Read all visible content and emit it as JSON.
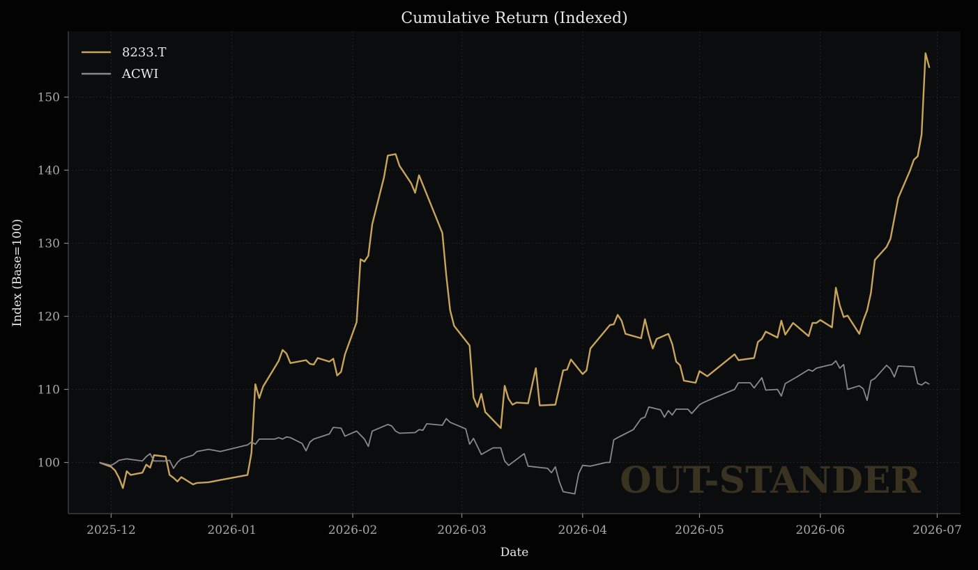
{
  "chart_data": {
    "type": "line",
    "title": "Cumulative Return (Indexed)",
    "xlabel": "Date",
    "ylabel": "Index (Base=100)",
    "watermark": "OUT-STANDER",
    "xlim": [
      "2025-11-20",
      "2026-07-07"
    ],
    "ylim": [
      93.0,
      159.0
    ],
    "yticks": [
      100,
      110,
      120,
      130,
      140,
      150
    ],
    "xticks": [
      {
        "date": "2025-12-01",
        "label": "2025-12"
      },
      {
        "date": "2026-01-01",
        "label": "2026-01"
      },
      {
        "date": "2026-02-01",
        "label": "2026-02"
      },
      {
        "date": "2026-03-01",
        "label": "2026-03"
      },
      {
        "date": "2026-04-01",
        "label": "2026-04"
      },
      {
        "date": "2026-05-01",
        "label": "2026-05"
      },
      {
        "date": "2026-06-01",
        "label": "2026-06"
      },
      {
        "date": "2026-07-01",
        "label": "2026-07"
      }
    ],
    "grid": true,
    "legend": "top-left",
    "series": [
      {
        "name": "8233.T",
        "color": "#c9a55a",
        "points": [
          [
            "2025-11-28",
            100.0
          ],
          [
            "2025-12-01",
            99.4
          ],
          [
            "2025-12-02",
            98.9
          ],
          [
            "2025-12-03",
            97.9
          ],
          [
            "2025-12-04",
            96.5
          ],
          [
            "2025-12-05",
            98.8
          ],
          [
            "2025-12-06",
            98.3
          ],
          [
            "2025-12-09",
            98.6
          ],
          [
            "2025-12-10",
            99.7
          ],
          [
            "2025-12-11",
            99.3
          ],
          [
            "2025-12-12",
            101.0
          ],
          [
            "2025-12-15",
            100.8
          ],
          [
            "2025-12-16",
            98.3
          ],
          [
            "2025-12-17",
            97.9
          ],
          [
            "2025-12-18",
            97.4
          ],
          [
            "2025-12-19",
            98.0
          ],
          [
            "2025-12-22",
            97.0
          ],
          [
            "2025-12-23",
            97.2
          ],
          [
            "2025-12-26",
            97.3
          ],
          [
            "2025-12-29",
            97.6
          ],
          [
            "2026-01-05",
            98.3
          ],
          [
            "2026-01-06",
            101.3
          ],
          [
            "2026-01-07",
            110.7
          ],
          [
            "2026-01-08",
            108.8
          ],
          [
            "2026-01-09",
            110.4
          ],
          [
            "2026-01-13",
            113.9
          ],
          [
            "2026-01-14",
            115.4
          ],
          [
            "2026-01-15",
            114.9
          ],
          [
            "2026-01-16",
            113.6
          ],
          [
            "2026-01-20",
            114.0
          ],
          [
            "2026-01-21",
            113.5
          ],
          [
            "2026-01-22",
            113.4
          ],
          [
            "2026-01-23",
            114.3
          ],
          [
            "2026-01-26",
            113.8
          ],
          [
            "2026-01-27",
            114.2
          ],
          [
            "2026-01-28",
            111.9
          ],
          [
            "2026-01-29",
            112.4
          ],
          [
            "2026-01-30",
            114.8
          ],
          [
            "2026-02-02",
            119.2
          ],
          [
            "2026-02-03",
            127.8
          ],
          [
            "2026-02-04",
            127.5
          ],
          [
            "2026-02-05",
            128.3
          ],
          [
            "2026-02-06",
            132.6
          ],
          [
            "2026-02-09",
            139.0
          ],
          [
            "2026-02-10",
            142.0
          ],
          [
            "2026-02-12",
            142.2
          ],
          [
            "2026-02-13",
            140.6
          ],
          [
            "2026-02-16",
            138.2
          ],
          [
            "2026-02-17",
            136.9
          ],
          [
            "2026-02-18",
            139.3
          ],
          [
            "2026-02-20",
            136.7
          ],
          [
            "2026-02-24",
            131.4
          ],
          [
            "2026-02-25",
            125.6
          ],
          [
            "2026-02-26",
            120.8
          ],
          [
            "2026-02-27",
            118.7
          ],
          [
            "2026-03-03",
            116.0
          ],
          [
            "2026-03-04",
            108.9
          ],
          [
            "2026-03-05",
            107.6
          ],
          [
            "2026-03-06",
            109.4
          ],
          [
            "2026-03-07",
            106.9
          ],
          [
            "2026-03-11",
            104.7
          ],
          [
            "2026-03-12",
            110.5
          ],
          [
            "2026-03-13",
            108.7
          ],
          [
            "2026-03-14",
            107.9
          ],
          [
            "2026-03-15",
            108.2
          ],
          [
            "2026-03-18",
            108.1
          ],
          [
            "2026-03-20",
            112.9
          ],
          [
            "2026-03-21",
            107.8
          ],
          [
            "2026-03-25",
            107.9
          ],
          [
            "2026-03-27",
            112.6
          ],
          [
            "2026-03-28",
            112.7
          ],
          [
            "2026-03-29",
            114.1
          ],
          [
            "2026-04-01",
            112.1
          ],
          [
            "2026-04-02",
            112.6
          ],
          [
            "2026-04-03",
            115.6
          ],
          [
            "2026-04-08",
            118.8
          ],
          [
            "2026-04-09",
            118.9
          ],
          [
            "2026-04-10",
            120.2
          ],
          [
            "2026-04-11",
            119.4
          ],
          [
            "2026-04-12",
            117.6
          ],
          [
            "2026-04-16",
            117.0
          ],
          [
            "2026-04-17",
            119.6
          ],
          [
            "2026-04-18",
            117.4
          ],
          [
            "2026-04-19",
            115.6
          ],
          [
            "2026-04-20",
            116.9
          ],
          [
            "2026-04-23",
            117.6
          ],
          [
            "2026-04-24",
            116.2
          ],
          [
            "2026-04-25",
            113.8
          ],
          [
            "2026-04-26",
            113.3
          ],
          [
            "2026-04-27",
            111.2
          ],
          [
            "2026-04-30",
            110.9
          ],
          [
            "2026-05-01",
            112.5
          ],
          [
            "2026-05-03",
            111.8
          ],
          [
            "2026-05-10",
            114.8
          ],
          [
            "2026-05-11",
            114.0
          ],
          [
            "2026-05-15",
            114.3
          ],
          [
            "2026-05-16",
            116.5
          ],
          [
            "2026-05-17",
            116.9
          ],
          [
            "2026-05-18",
            117.9
          ],
          [
            "2026-05-21",
            117.1
          ],
          [
            "2026-05-22",
            119.4
          ],
          [
            "2026-05-23",
            117.5
          ],
          [
            "2026-05-25",
            119.1
          ],
          [
            "2026-05-29",
            117.3
          ],
          [
            "2026-05-30",
            119.1
          ],
          [
            "2026-05-31",
            119.1
          ],
          [
            "2026-06-01",
            119.5
          ],
          [
            "2026-06-04",
            118.5
          ],
          [
            "2026-06-05",
            123.9
          ],
          [
            "2026-06-06",
            121.5
          ],
          [
            "2026-06-07",
            119.9
          ],
          [
            "2026-06-08",
            120.1
          ],
          [
            "2026-06-11",
            117.6
          ],
          [
            "2026-06-12",
            119.4
          ],
          [
            "2026-06-13",
            120.8
          ],
          [
            "2026-06-14",
            123.2
          ],
          [
            "2026-06-15",
            127.7
          ],
          [
            "2026-06-18",
            129.5
          ],
          [
            "2026-06-19",
            130.6
          ],
          [
            "2026-06-21",
            136.2
          ],
          [
            "2026-06-24",
            139.9
          ],
          [
            "2026-06-25",
            141.4
          ],
          [
            "2026-06-26",
            141.9
          ],
          [
            "2026-06-27",
            144.9
          ],
          [
            "2026-06-28",
            156.0
          ],
          [
            "2026-06-29",
            154.0
          ]
        ]
      },
      {
        "name": "ACWI",
        "color": "#8a8a8a",
        "points": [
          [
            "2025-11-28",
            100.0
          ],
          [
            "2025-12-01",
            99.6
          ],
          [
            "2025-12-02",
            99.9
          ],
          [
            "2025-12-03",
            100.3
          ],
          [
            "2025-12-04",
            100.4
          ],
          [
            "2025-12-05",
            100.5
          ],
          [
            "2025-12-09",
            100.2
          ],
          [
            "2025-12-10",
            100.8
          ],
          [
            "2025-12-11",
            101.2
          ],
          [
            "2025-12-12",
            100.2
          ],
          [
            "2025-12-15",
            100.2
          ],
          [
            "2025-12-16",
            100.3
          ],
          [
            "2025-12-17",
            99.2
          ],
          [
            "2025-12-18",
            100.0
          ],
          [
            "2025-12-19",
            100.5
          ],
          [
            "2025-12-22",
            101.0
          ],
          [
            "2025-12-23",
            101.5
          ],
          [
            "2025-12-26",
            101.8
          ],
          [
            "2025-12-29",
            101.5
          ],
          [
            "2026-01-05",
            102.4
          ],
          [
            "2026-01-06",
            102.8
          ],
          [
            "2026-01-07",
            102.5
          ],
          [
            "2026-01-08",
            103.2
          ],
          [
            "2026-01-12",
            103.2
          ],
          [
            "2026-01-13",
            103.4
          ],
          [
            "2026-01-14",
            103.2
          ],
          [
            "2026-01-15",
            103.5
          ],
          [
            "2026-01-16",
            103.4
          ],
          [
            "2026-01-19",
            102.6
          ],
          [
            "2026-01-20",
            101.6
          ],
          [
            "2026-01-21",
            102.8
          ],
          [
            "2026-01-22",
            103.2
          ],
          [
            "2026-01-26",
            103.9
          ],
          [
            "2026-01-27",
            104.8
          ],
          [
            "2026-01-29",
            104.7
          ],
          [
            "2026-01-30",
            103.6
          ],
          [
            "2026-02-02",
            104.3
          ],
          [
            "2026-02-04",
            103.2
          ],
          [
            "2026-02-05",
            102.2
          ],
          [
            "2026-02-06",
            104.3
          ],
          [
            "2026-02-10",
            105.2
          ],
          [
            "2026-02-11",
            105.0
          ],
          [
            "2026-02-12",
            104.3
          ],
          [
            "2026-02-13",
            104.0
          ],
          [
            "2026-02-17",
            104.1
          ],
          [
            "2026-02-18",
            104.5
          ],
          [
            "2026-02-19",
            104.4
          ],
          [
            "2026-02-20",
            105.3
          ],
          [
            "2026-02-24",
            105.1
          ],
          [
            "2026-02-25",
            106.0
          ],
          [
            "2026-02-26",
            105.5
          ],
          [
            "2026-03-02",
            104.6
          ],
          [
            "2026-03-03",
            102.5
          ],
          [
            "2026-03-04",
            103.3
          ],
          [
            "2026-03-06",
            101.1
          ],
          [
            "2026-03-09",
            102.0
          ],
          [
            "2026-03-11",
            102.0
          ],
          [
            "2026-03-12",
            100.2
          ],
          [
            "2026-03-13",
            99.6
          ],
          [
            "2026-03-17",
            101.2
          ],
          [
            "2026-03-18",
            99.5
          ],
          [
            "2026-03-23",
            99.2
          ],
          [
            "2026-03-24",
            98.6
          ],
          [
            "2026-03-25",
            99.4
          ],
          [
            "2026-03-26",
            97.4
          ],
          [
            "2026-03-27",
            96.0
          ],
          [
            "2026-03-30",
            95.7
          ],
          [
            "2026-03-31",
            98.5
          ],
          [
            "2026-04-01",
            99.6
          ],
          [
            "2026-04-03",
            99.5
          ],
          [
            "2026-04-07",
            100.0
          ],
          [
            "2026-04-08",
            100.0
          ],
          [
            "2026-04-09",
            103.1
          ],
          [
            "2026-04-10",
            103.4
          ],
          [
            "2026-04-14",
            104.5
          ],
          [
            "2026-04-16",
            106.0
          ],
          [
            "2026-04-17",
            106.2
          ],
          [
            "2026-04-18",
            107.6
          ],
          [
            "2026-04-21",
            107.2
          ],
          [
            "2026-04-22",
            106.2
          ],
          [
            "2026-04-23",
            107.1
          ],
          [
            "2026-04-24",
            106.5
          ],
          [
            "2026-04-25",
            107.3
          ],
          [
            "2026-04-28",
            107.3
          ],
          [
            "2026-04-29",
            106.7
          ],
          [
            "2026-05-01",
            107.9
          ],
          [
            "2026-05-02",
            108.2
          ],
          [
            "2026-05-05",
            108.9
          ],
          [
            "2026-05-10",
            110.0
          ],
          [
            "2026-05-11",
            110.9
          ],
          [
            "2026-05-14",
            110.9
          ],
          [
            "2026-05-15",
            110.2
          ],
          [
            "2026-05-17",
            111.6
          ],
          [
            "2026-05-18",
            109.9
          ],
          [
            "2026-05-21",
            110.0
          ],
          [
            "2026-05-22",
            109.1
          ],
          [
            "2026-05-23",
            110.8
          ],
          [
            "2026-05-26",
            111.7
          ],
          [
            "2026-05-29",
            112.7
          ],
          [
            "2026-05-30",
            112.5
          ],
          [
            "2026-05-31",
            112.9
          ],
          [
            "2026-06-03",
            113.3
          ],
          [
            "2026-06-04",
            113.4
          ],
          [
            "2026-06-05",
            113.9
          ],
          [
            "2026-06-06",
            112.9
          ],
          [
            "2026-06-07",
            113.4
          ],
          [
            "2026-06-08",
            110.0
          ],
          [
            "2026-06-11",
            110.5
          ],
          [
            "2026-06-12",
            110.1
          ],
          [
            "2026-06-13",
            108.5
          ],
          [
            "2026-06-14",
            111.2
          ],
          [
            "2026-06-15",
            111.5
          ],
          [
            "2026-06-18",
            113.3
          ],
          [
            "2026-06-19",
            112.8
          ],
          [
            "2026-06-20",
            111.7
          ],
          [
            "2026-06-21",
            113.2
          ],
          [
            "2026-06-25",
            113.1
          ],
          [
            "2026-06-26",
            110.8
          ],
          [
            "2026-06-27",
            110.6
          ],
          [
            "2026-06-28",
            111.0
          ],
          [
            "2026-06-29",
            110.7
          ]
        ]
      }
    ]
  }
}
